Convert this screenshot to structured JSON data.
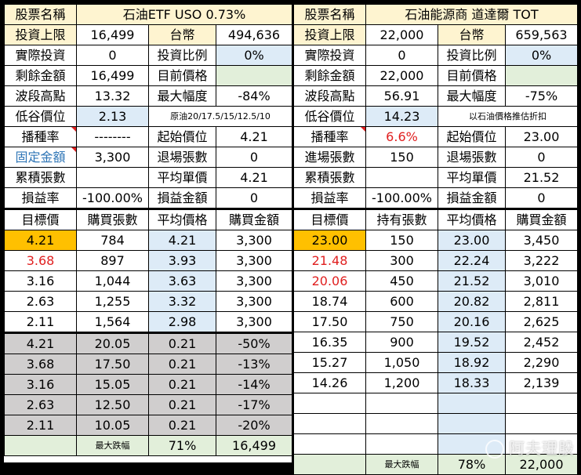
{
  "left": {
    "header": {
      "label": "股票名稱",
      "name": "石油ETF USO  0.73%"
    },
    "info": [
      [
        "投資上限",
        "16,499",
        "台幣",
        "494,636"
      ],
      [
        "實際投資",
        "0",
        "投資比例",
        "0%"
      ],
      [
        "剩餘金額",
        "16,499",
        "目前價格",
        ""
      ],
      [
        "波段高點",
        "13.32",
        "最大幅度",
        "-84%"
      ],
      [
        "低谷價位",
        "2.13",
        "原油20/17.5/15/12.5/10",
        ""
      ],
      [
        "播種率",
        "--------",
        "起始價位",
        "4.21"
      ],
      [
        "固定金額",
        "3,300",
        "退場張數",
        "0"
      ],
      [
        "累積張數",
        "",
        "平均單價",
        "4.21"
      ],
      [
        "損益率",
        "-100.00%",
        "損益金額",
        "0"
      ]
    ],
    "buy_headers": [
      "目標價",
      "購買張數",
      "平均價格",
      "購買金額"
    ],
    "buy_rows": [
      [
        "4.21",
        "784",
        "4.21",
        "3,300"
      ],
      [
        "3.68",
        "897",
        "3.93",
        "3,300"
      ],
      [
        "3.16",
        "1,044",
        "3.63",
        "3,300"
      ],
      [
        "2.63",
        "1,255",
        "3.32",
        "3,300"
      ],
      [
        "2.11",
        "1,564",
        "2.98",
        "3,300"
      ]
    ],
    "drop_rows": [
      [
        "4.21",
        "20.05",
        "0.21",
        "-50%"
      ],
      [
        "3.68",
        "17.50",
        "0.21",
        "-13%"
      ],
      [
        "3.16",
        "15.05",
        "0.21",
        "-14%"
      ],
      [
        "2.63",
        "12.50",
        "0.21",
        "-17%"
      ],
      [
        "2.11",
        "10.05",
        "0.21",
        "-20%"
      ]
    ],
    "footer": [
      "",
      "最大跌幅",
      "71%",
      "16,499"
    ]
  },
  "right": {
    "header": {
      "label": "股票名稱",
      "name": "石油能源商 道達爾 TOT"
    },
    "info": [
      [
        "投資上限",
        "22,000",
        "台幣",
        "659,563"
      ],
      [
        "實際投資",
        "0",
        "投資比例",
        "0%"
      ],
      [
        "剩餘金額",
        "22,000",
        "目前價格",
        ""
      ],
      [
        "波段高點",
        "56.91",
        "最大幅度",
        "-75%"
      ],
      [
        "低谷價位",
        "14.23",
        "以石油價格推估折扣",
        ""
      ],
      [
        "播種率",
        "6.6%",
        "起始價位",
        "23.00"
      ],
      [
        "進場張數",
        "150",
        "退場張數",
        "0"
      ],
      [
        "累積張數",
        "",
        "平均單價",
        "21.52"
      ],
      [
        "損益率",
        "-100.00%",
        "損益金額",
        "0"
      ]
    ],
    "buy_headers": [
      "目標價",
      "持有張數",
      "平均價格",
      "購買金額"
    ],
    "buy_rows": [
      [
        "23.00",
        "150",
        "23.00",
        "3,450"
      ],
      [
        "21.48",
        "300",
        "22.24",
        "3,222"
      ],
      [
        "20.06",
        "450",
        "21.52",
        "3,010"
      ],
      [
        "18.74",
        "600",
        "20.82",
        "2,811"
      ],
      [
        "17.50",
        "750",
        "20.16",
        "2,625"
      ],
      [
        "16.35",
        "900",
        "19.52",
        "2,452"
      ],
      [
        "15.27",
        "1,050",
        "18.92",
        "2,290"
      ],
      [
        "14.26",
        "1,200",
        "18.33",
        "2,139"
      ],
      [
        "",
        "",
        "",
        ""
      ],
      [
        "",
        "",
        "",
        ""
      ],
      [
        "",
        "",
        "",
        ""
      ]
    ],
    "footer": [
      "",
      "最大跌幅",
      "78%",
      "22,000"
    ]
  },
  "watermark": "阿夫理股",
  "colors": {
    "cream": "#FEF4D0",
    "blue": "#DDEBF7",
    "green": "#E2EFDA",
    "orange": "#FFC000",
    "gray": "#D0CECE",
    "red": "#E02020",
    "link_blue": "#2E75B6"
  }
}
